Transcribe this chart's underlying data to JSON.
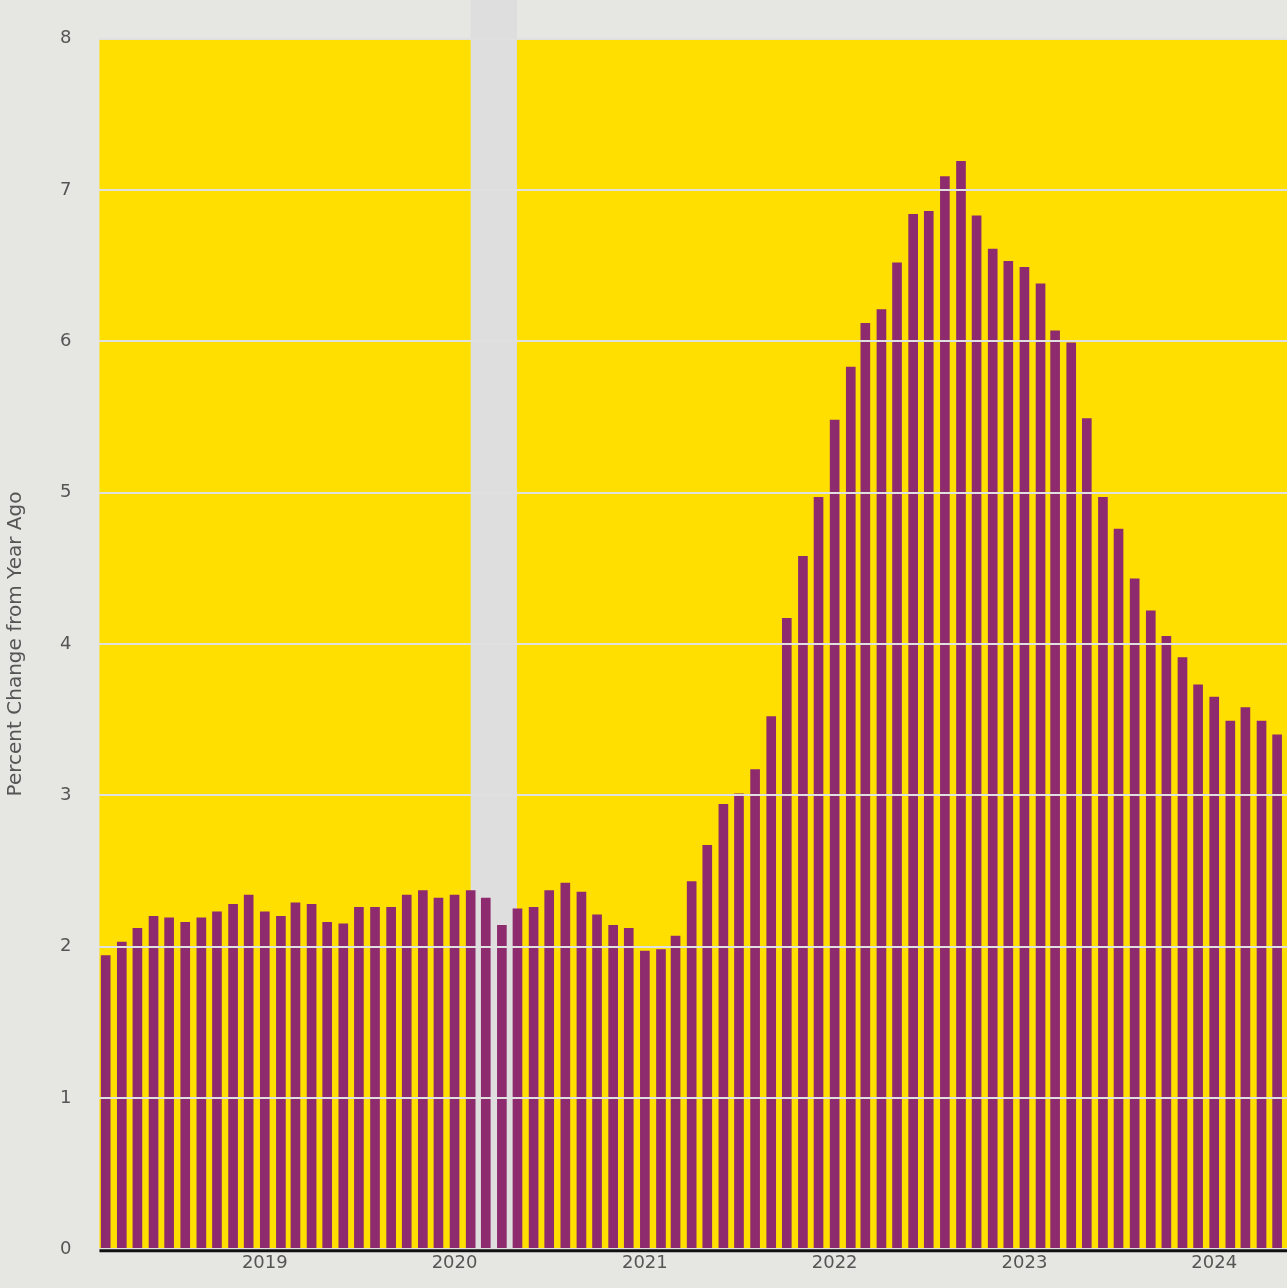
{
  "chart_data": {
    "type": "bar",
    "ylabel": "Percent Change from Year Ago",
    "x": [
      "2018-03",
      "2018-04",
      "2018-05",
      "2018-06",
      "2018-07",
      "2018-08",
      "2018-09",
      "2018-10",
      "2018-11",
      "2018-12",
      "2019-01",
      "2019-02",
      "2019-03",
      "2019-04",
      "2019-05",
      "2019-06",
      "2019-07",
      "2019-08",
      "2019-09",
      "2019-10",
      "2019-11",
      "2019-12",
      "2020-01",
      "2020-02",
      "2020-03",
      "2020-04",
      "2020-05",
      "2020-06",
      "2020-07",
      "2020-08",
      "2020-09",
      "2020-10",
      "2020-11",
      "2020-12",
      "2021-01",
      "2021-02",
      "2021-03",
      "2021-04",
      "2021-05",
      "2021-06",
      "2021-07",
      "2021-08",
      "2021-09",
      "2021-10",
      "2021-11",
      "2021-12",
      "2022-01",
      "2022-02",
      "2022-03",
      "2022-04",
      "2022-05",
      "2022-06",
      "2022-07",
      "2022-08",
      "2022-09",
      "2022-10",
      "2022-11",
      "2022-12",
      "2023-01",
      "2023-02",
      "2023-03",
      "2023-04",
      "2023-05",
      "2023-06",
      "2023-07",
      "2023-08",
      "2023-09",
      "2023-10",
      "2023-11",
      "2023-12",
      "2024-01",
      "2024-02",
      "2024-03",
      "2024-04",
      "2024-05"
    ],
    "series": [
      {
        "color": "#8e2a6e",
        "values": [
          1.94,
          2.03,
          2.12,
          2.2,
          2.19,
          2.16,
          2.19,
          2.23,
          2.28,
          2.34,
          2.23,
          2.2,
          2.29,
          2.28,
          2.16,
          2.15,
          2.26,
          2.26,
          2.26,
          2.34,
          2.37,
          2.32,
          2.34,
          2.37,
          2.32,
          2.14,
          2.25,
          2.26,
          2.37,
          2.42,
          2.36,
          2.21,
          2.14,
          2.12,
          1.97,
          1.98,
          2.07,
          2.43,
          2.67,
          2.94,
          3.01,
          3.17,
          3.52,
          4.17,
          4.58,
          4.97,
          5.48,
          5.83,
          6.12,
          6.21,
          6.52,
          6.84,
          6.86,
          7.09,
          7.19,
          6.83,
          6.61,
          6.53,
          6.49,
          6.38,
          6.07,
          5.99,
          5.49,
          4.97,
          4.76,
          4.43,
          4.22,
          4.05,
          3.91,
          3.73,
          3.65,
          3.49,
          3.58,
          3.49,
          3.4
        ]
      }
    ],
    "xlim": [
      "2018-02-17",
      "2024-05-20"
    ],
    "xticks": [
      {
        "value": "2019-01-01",
        "label": "2019"
      },
      {
        "value": "2020-01-01",
        "label": "2020"
      },
      {
        "value": "2021-01-01",
        "label": "2021"
      },
      {
        "value": "2022-01-01",
        "label": "2022"
      },
      {
        "value": "2023-01-01",
        "label": "2023"
      },
      {
        "value": "2024-01-01",
        "label": "2024"
      }
    ],
    "ylim": [
      0,
      8
    ],
    "yticks": [
      0,
      1,
      2,
      3,
      4,
      5,
      6,
      7,
      8
    ],
    "grid": "y",
    "bands": [
      {
        "axis": "x",
        "from": "2020-02-01",
        "to": "2020-04-30",
        "color": "#dedede"
      }
    ]
  }
}
